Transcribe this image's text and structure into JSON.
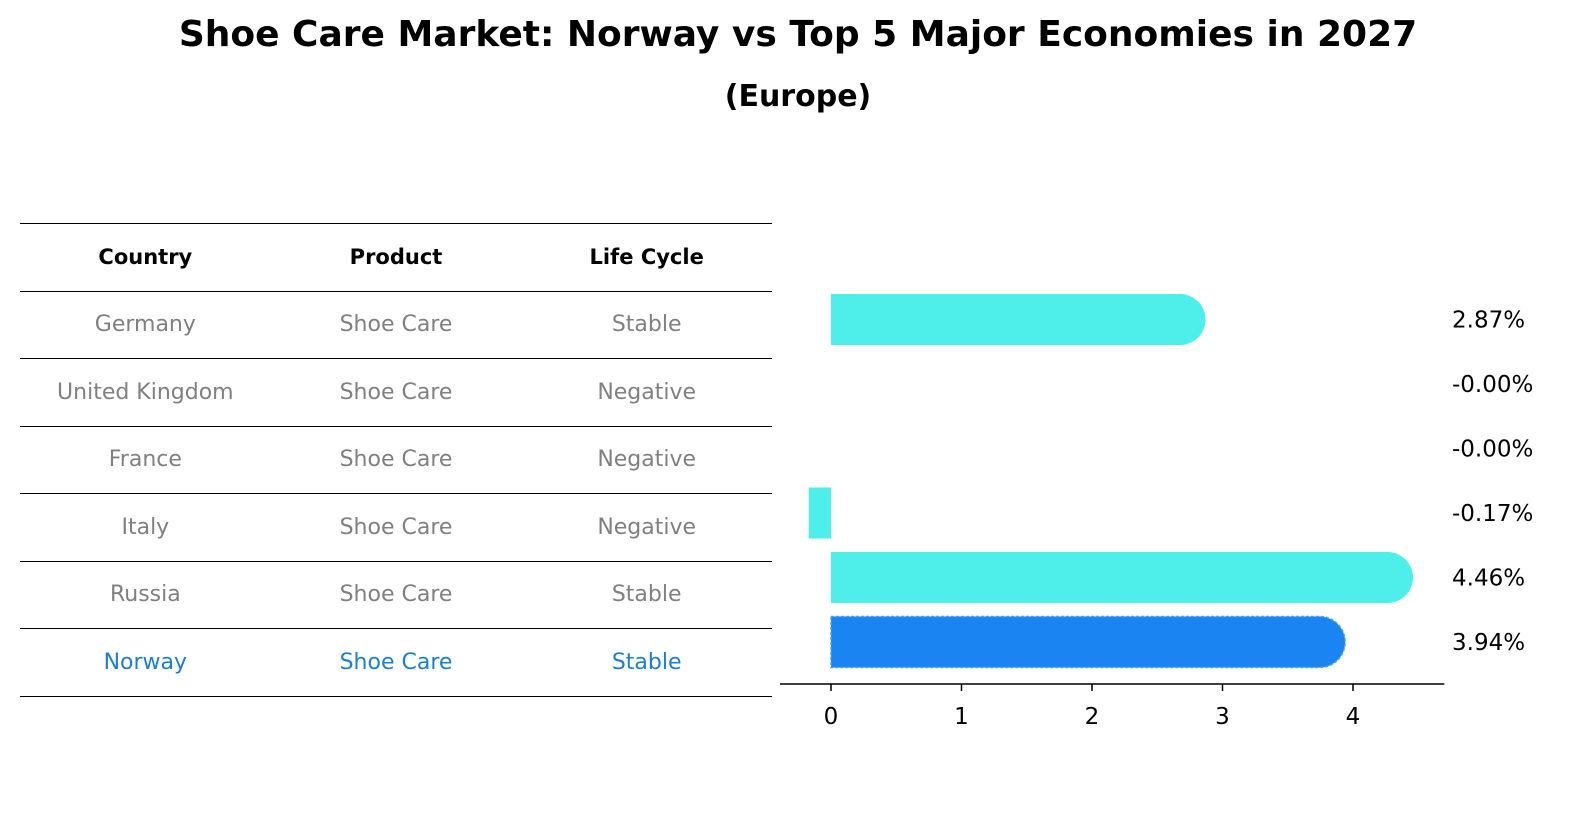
{
  "title": "Shoe Care Market: Norway vs Top 5 Major Economies in 2027",
  "subtitle": "(Europe)",
  "table": {
    "headers": [
      "Country",
      "Product",
      "Life Cycle"
    ],
    "rows": [
      [
        "Germany",
        "Shoe Care",
        "Stable"
      ],
      [
        "United Kingdom",
        "Shoe Care",
        "Negative"
      ],
      [
        "France",
        "Shoe Care",
        "Negative"
      ],
      [
        "Italy",
        "Shoe Care",
        "Negative"
      ],
      [
        "Russia",
        "Shoe Care",
        "Stable"
      ],
      [
        "Norway",
        "Shoe Care",
        "Stable"
      ]
    ],
    "highlight_row": "Norway",
    "text_color": "#808080",
    "highlight_color": "#1a7fd4"
  },
  "chart_data": {
    "type": "bar",
    "orientation": "horizontal",
    "categories": [
      "Germany",
      "United Kingdom",
      "France",
      "Italy",
      "Russia",
      "Norway"
    ],
    "values": [
      2.87,
      -0.0,
      -0.0,
      -0.17,
      4.46,
      3.94
    ],
    "value_labels": [
      "2.87%",
      "-0.00%",
      "-0.00%",
      "-0.17%",
      "4.46%",
      "3.94%"
    ],
    "xticks": [
      "0",
      "1",
      "2",
      "3",
      "4"
    ],
    "xlim": [
      -0.4,
      4.7
    ],
    "bar_color": "#4eeeea",
    "highlight_color": "#1a84f2",
    "highlight_category": "Norway",
    "xlabel": "",
    "ylabel": "",
    "grid": false
  }
}
